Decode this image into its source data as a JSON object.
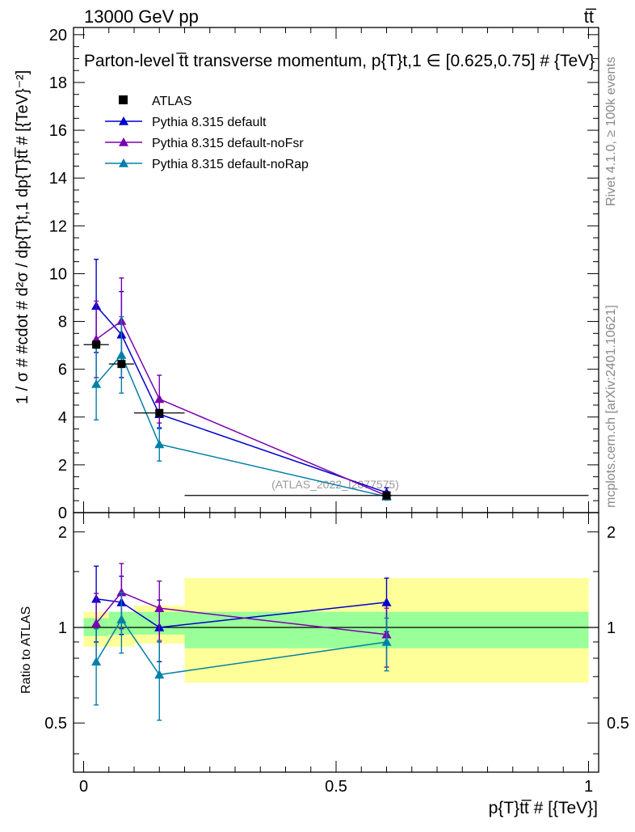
{
  "header": {
    "energy_label": "13000 GeV pp",
    "process_label": "tt̅",
    "title": "Parton-level t̅t transverse momentum, p{T}t,1 ∈ [0.625,0.75] # {TeV}",
    "analysis_id": "(ATLAS_2022_I2077575)",
    "side_rivet": "Rivet 4.1.0, ≥ 100k events",
    "side_site": "mcplots.cern.ch [arXiv:2401.10621]"
  },
  "chart_data": [
    {
      "type": "line",
      "panel": "main",
      "ylabel": "1 / σ # #cdot # d²σ / dp{T}t,1 dp{T}tt̅ # [{TeV}⁻²]",
      "xlim": [
        -0.02,
        1.02
      ],
      "ylim": [
        0,
        20.3
      ],
      "yticks": [
        "0",
        "2",
        "4",
        "6",
        "8",
        "10",
        "12",
        "14",
        "16",
        "18",
        "20"
      ],
      "ytick_values": [
        0,
        2,
        4,
        6,
        8,
        10,
        12,
        14,
        16,
        18,
        20
      ],
      "x": [
        0.025,
        0.075,
        0.15,
        0.6
      ],
      "xerr": [
        0.025,
        0.025,
        0.05,
        0.4
      ],
      "data": {
        "name": "ATLAS",
        "color": "#000000",
        "values": [
          7.03,
          6.22,
          4.17,
          0.72
        ]
      },
      "series": [
        {
          "name": "Pythia 8.315 default",
          "color": "#0000cc",
          "marker": "triangle",
          "values": [
            8.65,
            7.45,
            4.12,
            0.84
          ],
          "err": [
            1.95,
            1.8,
            0.6,
            0.2
          ]
        },
        {
          "name": "Pythia 8.315 default-noFsr",
          "color": "#7a00b0",
          "marker": "triangle",
          "values": [
            7.25,
            8.02,
            4.75,
            0.71
          ],
          "err": [
            1.6,
            1.8,
            1.0,
            0.18
          ]
        },
        {
          "name": "Pythia 8.315 default-noRap",
          "color": "#0080a8",
          "marker": "triangle",
          "values": [
            5.38,
            6.6,
            2.86,
            0.67
          ],
          "err": [
            1.5,
            1.6,
            0.7,
            0.15
          ]
        }
      ],
      "legend": "top-left"
    },
    {
      "type": "line",
      "panel": "ratio",
      "ylabel": "Ratio to ATLAS",
      "xlabel": "p{T}tt̅ # [{TeV}]",
      "ylim": [
        0.35,
        2.3
      ],
      "log_y": true,
      "yticks": [
        "0.5",
        "1",
        "2"
      ],
      "ytick_values": [
        0.5,
        1,
        2
      ],
      "xticks": [
        "0",
        "0.5",
        "1"
      ],
      "xtick_values": [
        0,
        0.5,
        1
      ],
      "bands": {
        "edges": [
          0,
          0.05,
          0.1,
          0.2,
          1.0
        ],
        "stat": {
          "color": "#99ff99",
          "lo": [
            0.94,
            0.95,
            0.95,
            0.86
          ],
          "hi": [
            1.07,
            1.12,
            1.12,
            1.12
          ]
        },
        "total": {
          "color": "#ffff99",
          "lo": [
            0.87,
            0.87,
            0.89,
            0.67
          ],
          "hi": [
            1.12,
            1.12,
            1.17,
            1.43
          ]
        }
      },
      "series": [
        {
          "name": "Pythia 8.315 default",
          "color": "#0000cc",
          "values": [
            1.23,
            1.2,
            1.0,
            1.2
          ],
          "err": [
            0.33,
            0.25,
            0.22,
            0.23
          ]
        },
        {
          "name": "Pythia 8.315 default-noFsr",
          "color": "#7a00b0",
          "values": [
            1.03,
            1.29,
            1.15,
            0.95
          ],
          "err": [
            0.25,
            0.3,
            0.25,
            0.2
          ]
        },
        {
          "name": "Pythia 8.315 default-noRap",
          "color": "#0080a8",
          "values": [
            0.78,
            1.06,
            0.71,
            0.9
          ],
          "err": [
            0.21,
            0.23,
            0.2,
            0.17
          ]
        }
      ]
    }
  ]
}
